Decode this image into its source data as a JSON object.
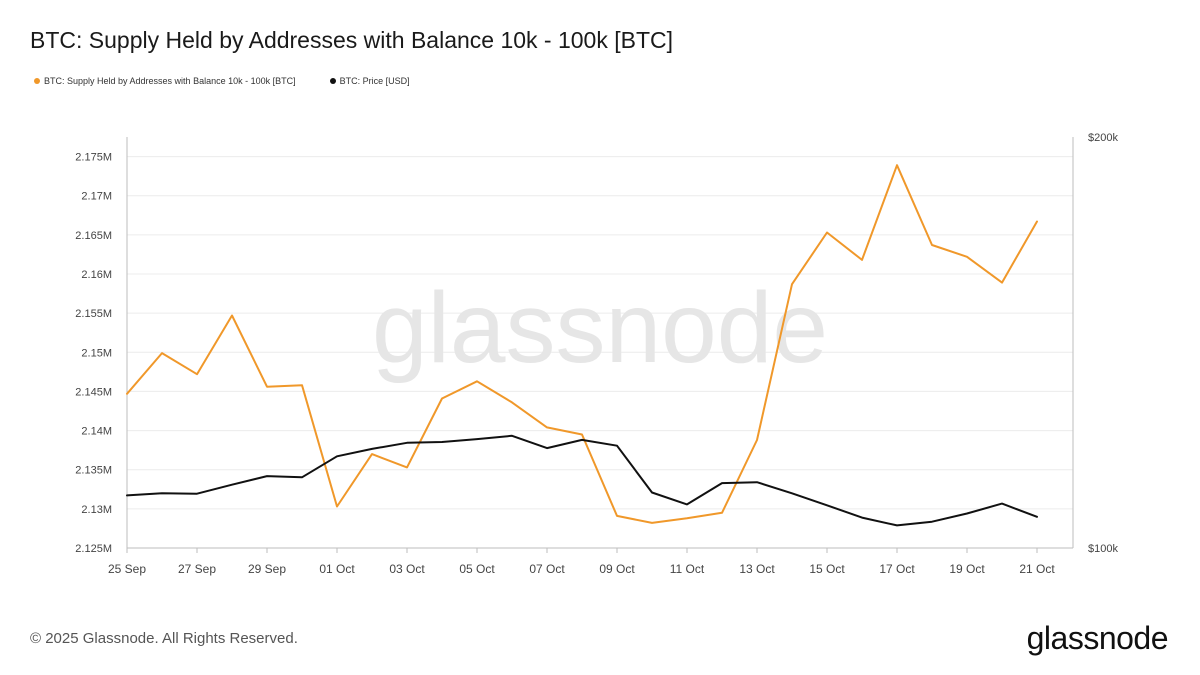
{
  "title": "BTC: Supply Held by Addresses with Balance 10k - 100k [BTC]",
  "footer": "© 2025 Glassnode. All Rights Reserved.",
  "brand": "glassnode",
  "watermark": "glassnode",
  "chart_data": {
    "type": "line",
    "x": [
      "25 Sep",
      "26 Sep",
      "27 Sep",
      "28 Sep",
      "29 Sep",
      "30 Sep",
      "01 Oct",
      "02 Oct",
      "03 Oct",
      "04 Oct",
      "05 Oct",
      "06 Oct",
      "07 Oct",
      "08 Oct",
      "09 Oct",
      "10 Oct",
      "11 Oct",
      "12 Oct",
      "13 Oct",
      "14 Oct",
      "15 Oct",
      "16 Oct",
      "17 Oct",
      "18 Oct",
      "19 Oct",
      "20 Oct",
      "21 Oct"
    ],
    "x_ticks": [
      "25 Sep",
      "27 Sep",
      "29 Sep",
      "01 Oct",
      "03 Oct",
      "05 Oct",
      "07 Oct",
      "09 Oct",
      "11 Oct",
      "13 Oct",
      "15 Oct",
      "17 Oct",
      "19 Oct",
      "21 Oct"
    ],
    "series": [
      {
        "name": "BTC: Supply Held by Addresses with Balance 10k - 100k [BTC]",
        "axis": "left",
        "color": "#f0982a",
        "values": [
          2144700,
          2149900,
          2147200,
          2154700,
          2145600,
          2145800,
          2130300,
          2137000,
          2135300,
          2144100,
          2146300,
          2143600,
          2140400,
          2139500,
          2129100,
          2128200,
          2128800,
          2129500,
          2138800,
          2158700,
          2165300,
          2161800,
          2173900,
          2163700,
          2162200,
          2158900,
          2166700
        ]
      },
      {
        "name": "BTC: Price [USD]",
        "axis": "right",
        "color": "#111111",
        "values": [
          112800,
          113300,
          113200,
          115400,
          117500,
          117200,
          122300,
          124100,
          125600,
          125800,
          126500,
          127300,
          124300,
          126300,
          124900,
          113500,
          110600,
          115800,
          116000,
          113300,
          110400,
          107400,
          105500,
          106400,
          108400,
          110800,
          107600
        ]
      }
    ],
    "y_left": {
      "ticks": [
        "2.125M",
        "2.13M",
        "2.135M",
        "2.14M",
        "2.145M",
        "2.15M",
        "2.155M",
        "2.16M",
        "2.165M",
        "2.17M",
        "2.175M"
      ],
      "range": [
        2125000,
        2177500
      ]
    },
    "y_right": {
      "ticks": [
        "$100k",
        "$200k"
      ],
      "range": [
        100000,
        200000
      ]
    },
    "grid": true,
    "legend": "top-left"
  }
}
